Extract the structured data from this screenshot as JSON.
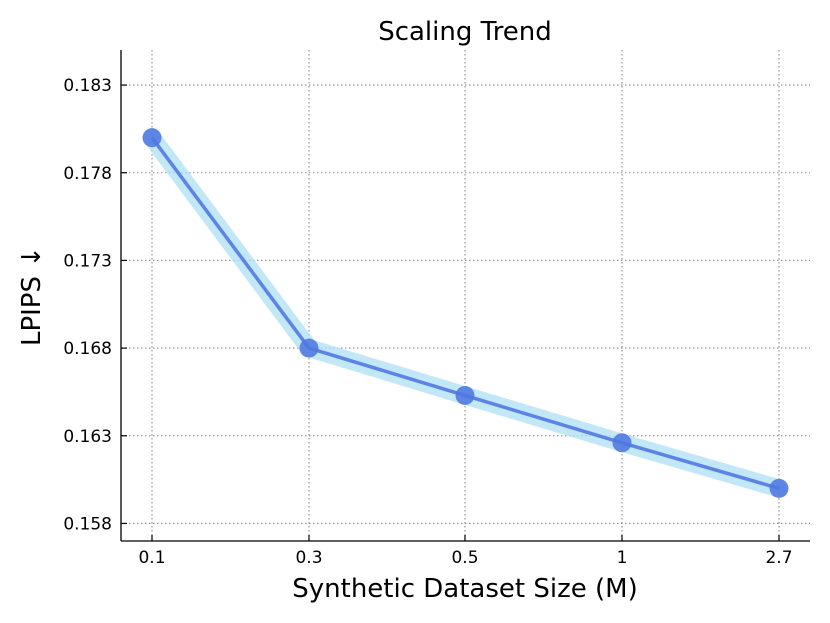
{
  "chart_data": {
    "type": "line",
    "title": "Scaling Trend",
    "xlabel": "Synthetic Dataset Size (M)",
    "ylabel": "LPIPS ↓",
    "categories": [
      "0.1",
      "0.3",
      "0.5",
      "1",
      "2.7"
    ],
    "series": [
      {
        "values": [
          0.18,
          0.168,
          0.1653,
          0.1626,
          0.16
        ]
      }
    ],
    "y_ticks": [
      "0.158",
      "0.163",
      "0.168",
      "0.173",
      "0.178",
      "0.183"
    ],
    "ylim": [
      0.157,
      0.185
    ],
    "grid": true,
    "colors": {
      "line": "#5b84e6",
      "band": "#aee0f5",
      "marker": "#4f78e0"
    }
  }
}
